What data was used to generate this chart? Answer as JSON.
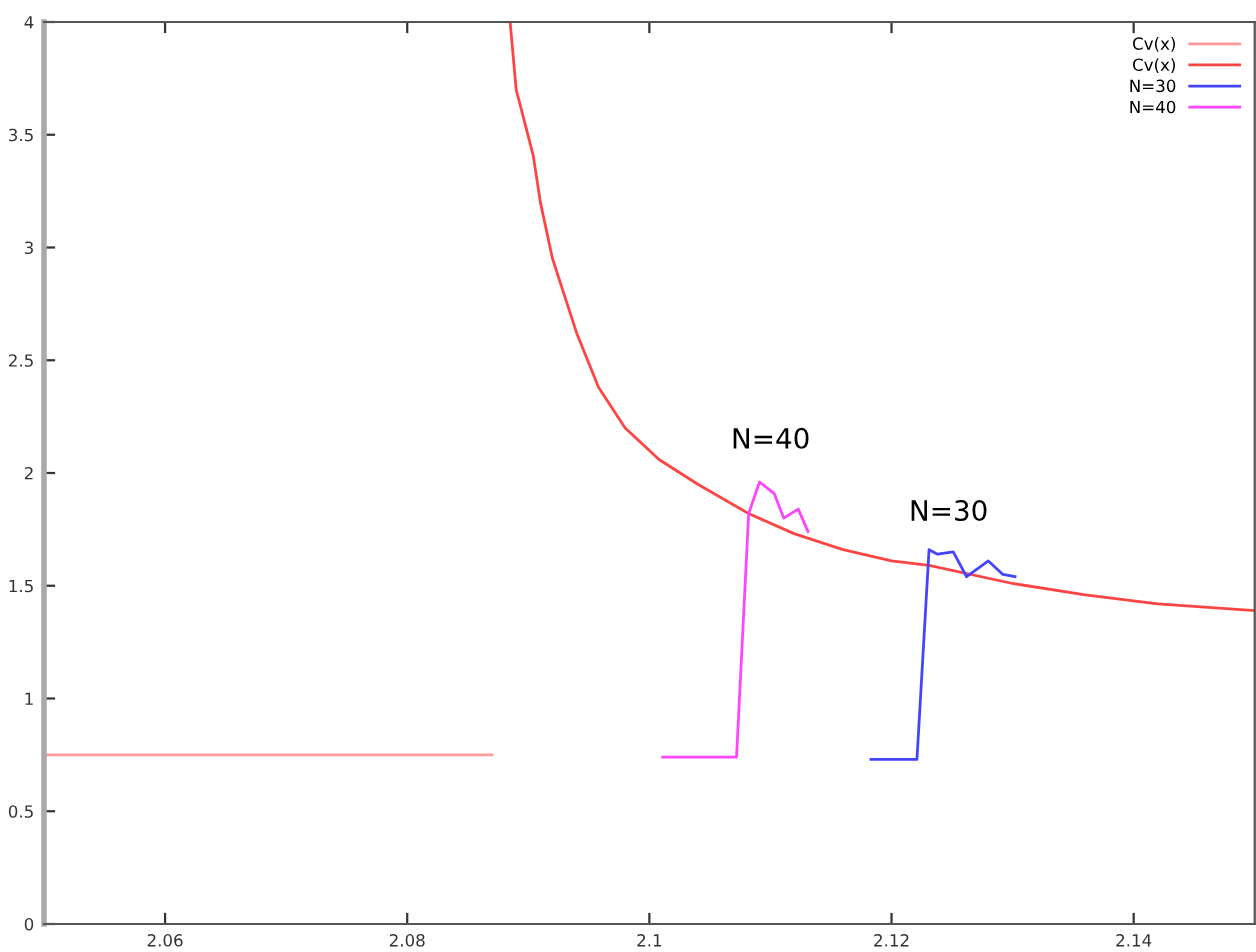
{
  "chart_data": {
    "type": "line",
    "xlim": [
      2.05,
      2.15
    ],
    "ylim": [
      0,
      4
    ],
    "xticks": [
      2.06,
      2.08,
      {
        "value": 2.1,
        "label": "2.1"
      },
      2.12,
      2.14
    ],
    "yticks": [
      0,
      0.5,
      1,
      1.5,
      2,
      2.5,
      3,
      3.5,
      4
    ],
    "grid": false,
    "legend": "top right",
    "marker": "none",
    "line_style": "solid",
    "series": [
      {
        "name": "Cv(x)",
        "color": "#ff9999",
        "x": [
          2.05,
          2.087
        ],
        "values": [
          0.75,
          0.75
        ]
      },
      {
        "name": "Cv(x)",
        "color": "#ff4444",
        "x": [
          2.0885,
          2.089,
          2.0904,
          2.091,
          2.092,
          2.094,
          2.0958,
          2.098,
          2.1008,
          2.104,
          2.1082,
          2.112,
          2.116,
          2.12,
          2.1231,
          2.13,
          2.136,
          2.142,
          2.15
        ],
        "values": [
          4.0,
          3.7,
          3.41,
          3.2,
          2.95,
          2.62,
          2.38,
          2.2,
          2.06,
          1.95,
          1.82,
          1.73,
          1.66,
          1.61,
          1.59,
          1.51,
          1.46,
          1.42,
          1.39
        ]
      },
      {
        "name": "N=30",
        "color": "#4444ff",
        "x": [
          2.1183,
          2.1221,
          2.1231,
          2.1238,
          2.1251,
          2.1262,
          2.128,
          2.1292,
          2.1302
        ],
        "values": [
          0.73,
          0.73,
          1.66,
          1.64,
          1.65,
          1.54,
          1.61,
          1.55,
          1.54
        ]
      },
      {
        "name": "N=40",
        "color": "#ff44ff",
        "x": [
          2.1011,
          2.1072,
          2.1082,
          2.1091,
          2.1103,
          2.1111,
          2.1123,
          2.1131
        ],
        "values": [
          0.74,
          0.74,
          1.82,
          1.96,
          1.91,
          1.8,
          1.84,
          1.74
        ]
      }
    ],
    "annotations": [
      {
        "text": "N=40",
        "x": 2.1091,
        "y": 1.96
      },
      {
        "text": "N=30",
        "x": 2.1238,
        "y": 1.64
      }
    ]
  }
}
